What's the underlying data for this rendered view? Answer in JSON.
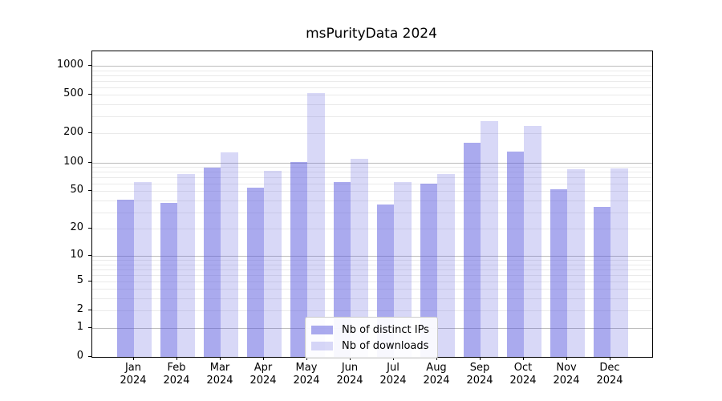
{
  "chart_data": {
    "type": "bar",
    "title": "msPurityData 2024",
    "categories": [
      "Jan 2024",
      "Feb 2024",
      "Mar 2024",
      "Apr 2024",
      "May 2024",
      "Jun 2024",
      "Jul 2024",
      "Aug 2024",
      "Sep 2024",
      "Oct 2024",
      "Nov 2024",
      "Dec 2024"
    ],
    "series": [
      {
        "name": "Nb of distinct IPs",
        "color": "rgba(85,85,221,0.5)",
        "color_hex_on_white": "#aaaaee",
        "values": [
          41,
          38,
          88,
          55,
          101,
          62,
          36,
          60,
          160,
          130,
          52,
          34
        ]
      },
      {
        "name": "Nb of downloads",
        "color": "rgba(85,85,221,0.23)",
        "color_hex_on_white": "#d8d8f5",
        "values": [
          62,
          76,
          126,
          82,
          520,
          110,
          62,
          75,
          270,
          240,
          85,
          86
        ]
      }
    ],
    "xlabel": "",
    "ylabel": "",
    "y_ticks": [
      0,
      1,
      2,
      5,
      10,
      20,
      50,
      100,
      200,
      500,
      1000
    ],
    "y_scale": "log10(value+1)",
    "ylim": [
      0,
      1400
    ],
    "grid": {
      "shown": true,
      "major_lines_at": [
        1,
        10,
        100,
        1000
      ],
      "minor_decades": [
        1,
        10,
        100
      ]
    },
    "legend": {
      "position": "lower center",
      "border_color": "#cccccc"
    }
  }
}
